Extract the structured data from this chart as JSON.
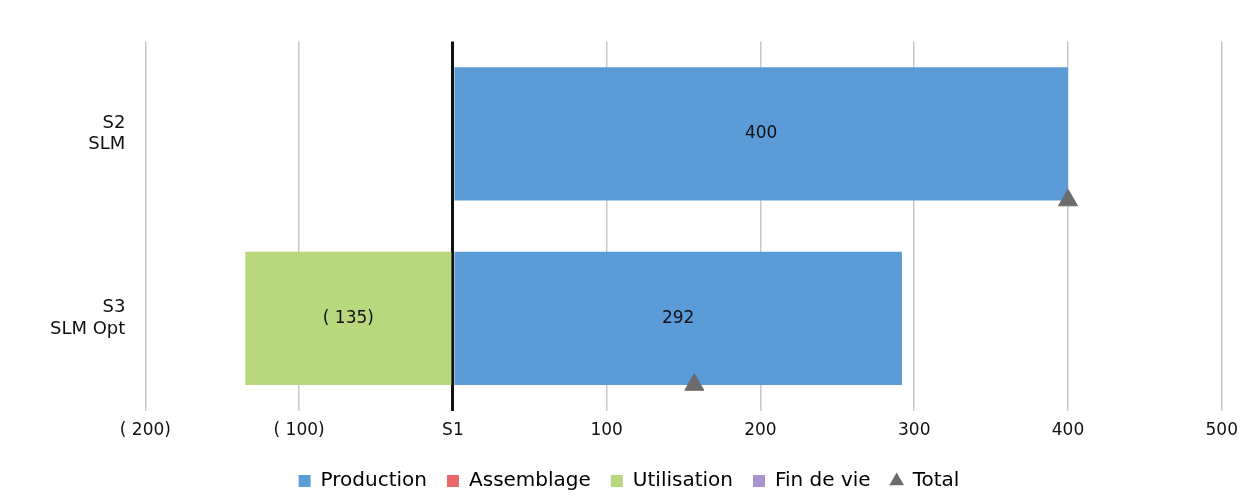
{
  "chart_data": {
    "type": "bar",
    "orientation": "horizontal",
    "stacked": true,
    "categories": [
      "S2\nSLM",
      "S3\nSLM Opt"
    ],
    "series": [
      {
        "name": "Production",
        "color": "#5b9bd8",
        "values": [
          400,
          292
        ],
        "value_labels": [
          "400",
          "292"
        ]
      },
      {
        "name": "Assemblage",
        "color": "#e8696b",
        "values": [
          0,
          0
        ]
      },
      {
        "name": "Utilisation",
        "color": "#b9d87e",
        "values": [
          0,
          -135
        ],
        "value_labels": [
          null,
          "( 135)"
        ]
      },
      {
        "name": "Fin de vie",
        "color": "#a992cf",
        "values": [
          0,
          0
        ]
      },
      {
        "name": "Total",
        "type": "scatter",
        "marker": "triangle",
        "color": "#6b6b6b",
        "values": [
          400,
          157
        ]
      }
    ],
    "xlim": [
      -200,
      500
    ],
    "xticks": [
      {
        "value": -200,
        "label": "( 200)"
      },
      {
        "value": -100,
        "label": "( 100)"
      },
      {
        "value": 0,
        "label": "S1"
      },
      100,
      200,
      300,
      400,
      500
    ],
    "grid": "x",
    "legend": "bottom"
  }
}
